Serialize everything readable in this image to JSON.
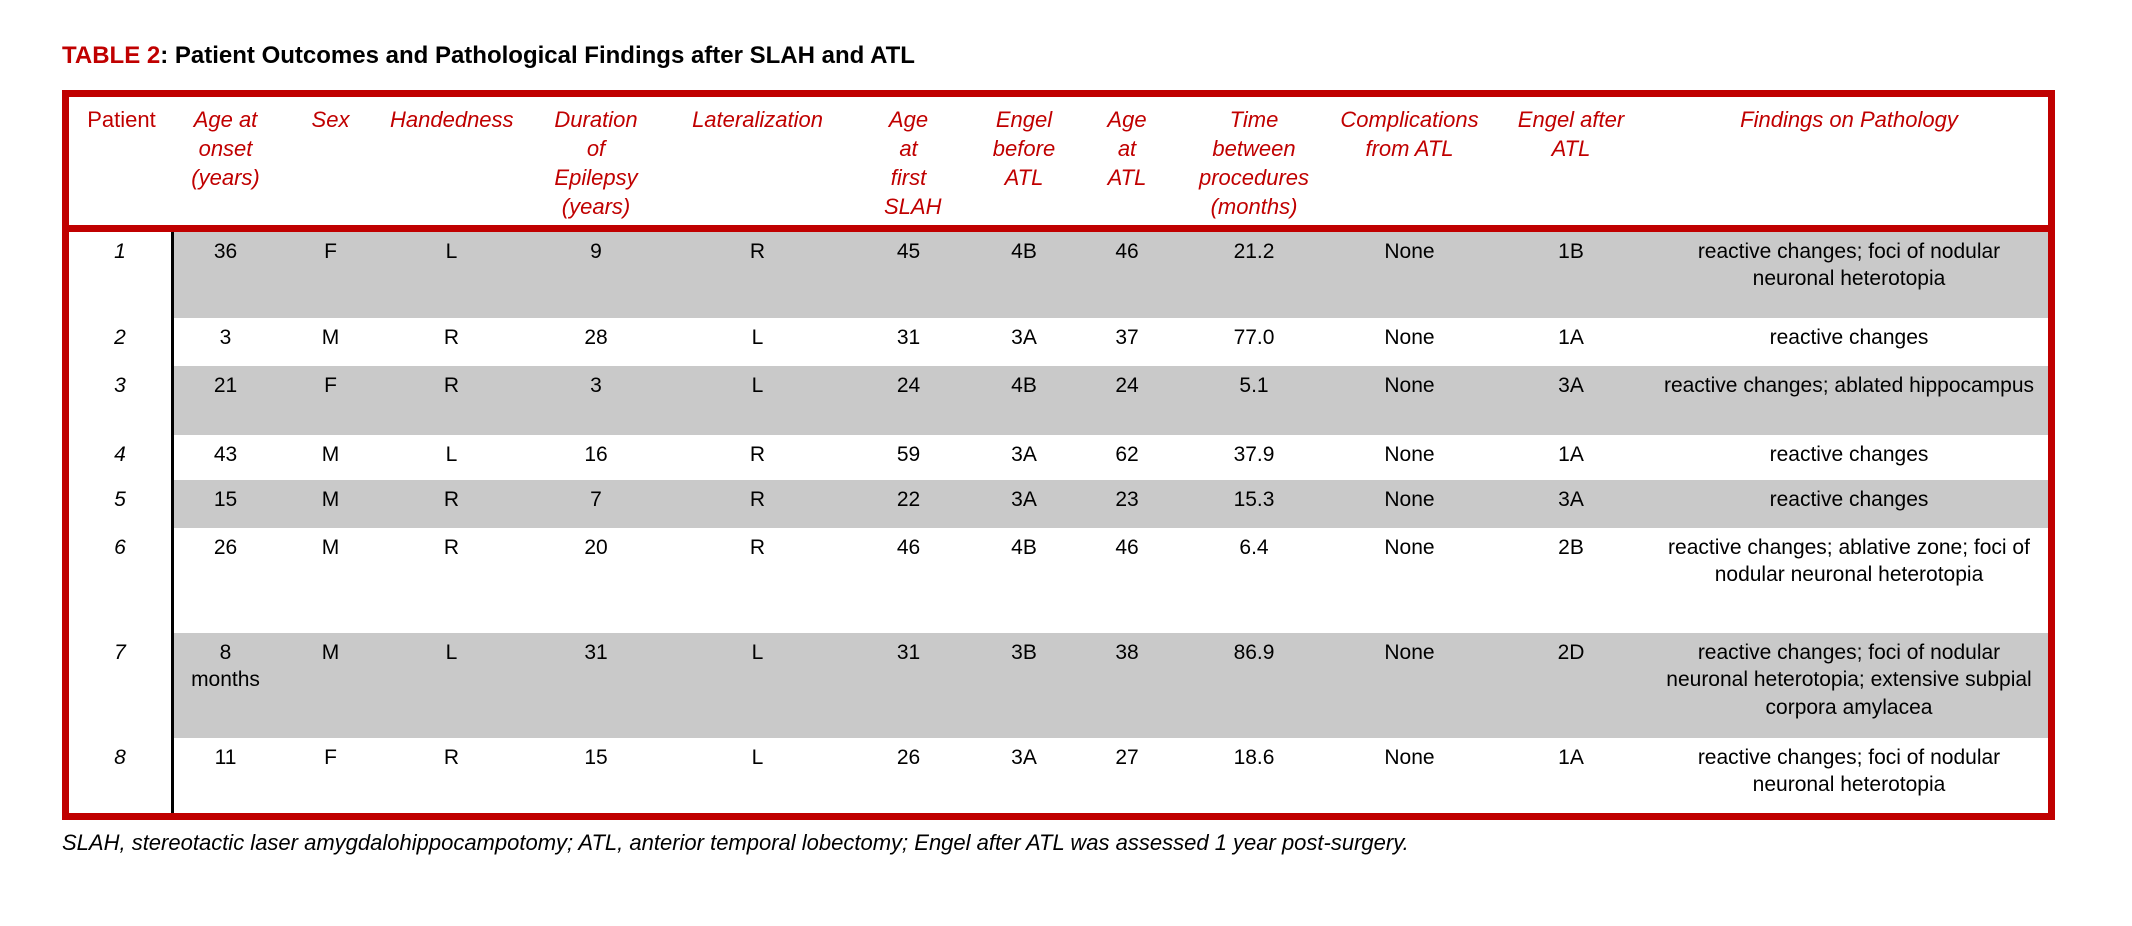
{
  "title": {
    "label": "TABLE 2",
    "rest": ": Patient Outcomes and Pathological Findings after SLAH and ATL"
  },
  "colors": {
    "accent_red": "#C00000",
    "stripe_gray": "#C9C9C9",
    "divider_black": "#000000"
  },
  "table": {
    "columns": [
      "Patient",
      "Age at onset (years)",
      "Sex",
      "Handedness",
      "Duration of Epilepsy (years)",
      "Lateralization",
      "Age at first SLAH",
      "Engel before ATL",
      "Age at ATL",
      "Time between procedures (months)",
      "Complications from ATL",
      "Engel after ATL",
      "Findings on Pathology"
    ],
    "rows": [
      [
        "1",
        "36",
        "F",
        "L",
        "9",
        "R",
        "45",
        "4B",
        "46",
        "21.2",
        "None",
        "1B",
        "reactive changes; foci of nodular neuronal heterotopia"
      ],
      [
        "2",
        "3",
        "M",
        "R",
        "28",
        "L",
        "31",
        "3A",
        "37",
        "77.0",
        "None",
        "1A",
        "reactive changes"
      ],
      [
        "3",
        "21",
        "F",
        "R",
        "3",
        "L",
        "24",
        "4B",
        "24",
        "5.1",
        "None",
        "3A",
        "reactive changes; ablated hippocampus"
      ],
      [
        "4",
        "43",
        "M",
        "L",
        "16",
        "R",
        "59",
        "3A",
        "62",
        "37.9",
        "None",
        "1A",
        "reactive changes"
      ],
      [
        "5",
        "15",
        "M",
        "R",
        "7",
        "R",
        "22",
        "3A",
        "23",
        "15.3",
        "None",
        "3A",
        "reactive changes"
      ],
      [
        "6",
        "26",
        "M",
        "R",
        "20",
        "R",
        "46",
        "4B",
        "46",
        "6.4",
        "None",
        "2B",
        "reactive changes; ablative zone; foci of nodular neuronal heterotopia"
      ],
      [
        "7",
        "8 months",
        "M",
        "L",
        "31",
        "L",
        "31",
        "3B",
        "38",
        "86.9",
        "None",
        "2D",
        "reactive changes; foci of nodular neuronal heterotopia; extensive subpial corpora amylacea"
      ],
      [
        "8",
        "11",
        "F",
        "R",
        "15",
        "L",
        "26",
        "3A",
        "27",
        "18.6",
        "None",
        "1A",
        "reactive changes; foci of nodular neuronal heterotopia"
      ]
    ]
  },
  "chart_data": {
    "type": "table",
    "title": "TABLE 2: Patient Outcomes and Pathological Findings after SLAH and ATL",
    "categories": [
      "Patient",
      "Age at onset (years)",
      "Sex",
      "Handedness",
      "Duration of Epilepsy (years)",
      "Lateralization",
      "Age at first SLAH",
      "Engel before ATL",
      "Age at ATL",
      "Time between procedures (months)",
      "Complications from ATL",
      "Engel after ATL",
      "Findings on Pathology"
    ]
  },
  "footnote": {
    "text": "SLAH, stereotactic laser amygdalohippocampotomy; ATL, anterior temporal lobectomy; Engel after ATL was assessed 1 year post-surgery."
  }
}
